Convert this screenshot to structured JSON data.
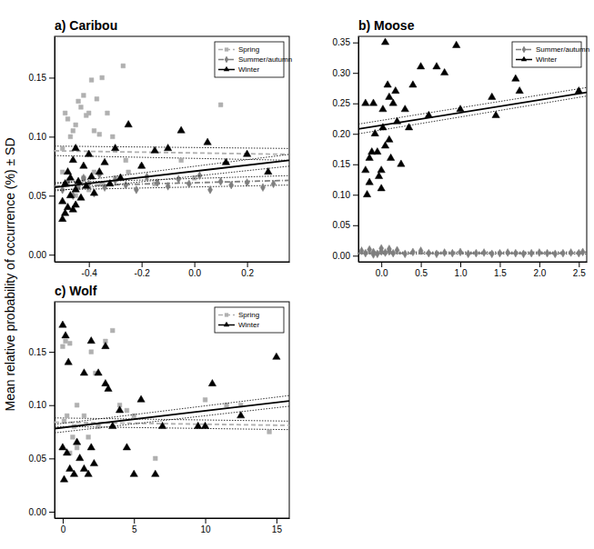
{
  "ylabel": "Mean relative probability of occurrence (%) ± SD",
  "chart_data": [
    {
      "type": "scatter",
      "title": "a) Caribou",
      "legend": "top-right",
      "xlim": [
        -0.53,
        0.36
      ],
      "xticks": [
        -0.4,
        -0.2,
        {
          "value": 0,
          "label": "0.0"
        },
        0.2
      ],
      "ylim": [
        -0.006,
        0.185
      ],
      "yticks": [
        {
          "value": 0,
          "label": "0.00"
        },
        {
          "value": 0.05,
          "label": "0.05"
        },
        {
          "value": 0.1,
          "label": "0.10"
        },
        {
          "value": 0.15,
          "label": "0.15"
        }
      ],
      "series": [
        {
          "name": "Spring",
          "color": "#b0b0b0",
          "marker": "square",
          "line_style": "dashed",
          "x": [
            -0.5,
            -0.49,
            -0.48,
            -0.47,
            -0.46,
            -0.45,
            -0.44,
            -0.43,
            -0.42,
            -0.41,
            -0.4,
            -0.39,
            -0.38,
            -0.37,
            -0.36,
            -0.35,
            -0.33,
            -0.31,
            -0.27,
            -0.26,
            -0.5,
            -0.48,
            -0.45,
            -0.42,
            -0.4,
            -0.38,
            -0.35,
            -0.3,
            -0.25,
            -0.2,
            -0.15,
            0.1,
            -0.05,
            0
          ],
          "values": [
            0.09,
            0.12,
            0.115,
            0.1,
            0.105,
            0.11,
            0.13,
            0.125,
            0.135,
            0.118,
            0.12,
            0.148,
            0.105,
            0.132,
            0.102,
            0.15,
            0.12,
            0.1,
            0.16,
            0.08,
            0.07,
            0.06,
            0.05,
            0.065,
            0.055,
            0.07,
            0.06,
            0.065,
            0.07,
            0.075,
            0.06,
            0.127,
            0.08,
            0.065
          ],
          "fit": {
            "x": [
              -0.53,
              0.36
            ],
            "values": [
              0.088,
              0.085
            ],
            "lower": [
              0.084,
              0.08
            ],
            "upper": [
              0.092,
              0.09
            ]
          }
        },
        {
          "name": "Summer/autumn",
          "color": "#7f7f7f",
          "marker": "diamond",
          "line_style": "dashdot",
          "x": [
            -0.5,
            -0.48,
            -0.46,
            -0.44,
            -0.42,
            -0.4,
            -0.38,
            -0.36,
            -0.34,
            -0.3,
            -0.26,
            -0.22,
            -0.18,
            -0.14,
            -0.1,
            -0.06,
            -0.02,
            0.02,
            0.06,
            0.1,
            0.14,
            0.2,
            0.26,
            0.3
          ],
          "values": [
            0.055,
            0.062,
            0.05,
            0.058,
            0.065,
            0.06,
            0.052,
            0.068,
            0.057,
            0.063,
            0.059,
            0.055,
            0.066,
            0.061,
            0.058,
            0.064,
            0.06,
            0.067,
            0.055,
            0.062,
            0.059,
            0.061,
            0.057,
            0.06
          ],
          "fit": {
            "x": [
              -0.53,
              0.36
            ],
            "values": [
              0.058,
              0.063
            ],
            "lower": [
              0.055,
              0.059
            ],
            "upper": [
              0.061,
              0.067
            ]
          }
        },
        {
          "name": "Winter",
          "color": "#000000",
          "marker": "triangle",
          "line_style": "solid",
          "x": [
            -0.5,
            -0.5,
            -0.49,
            -0.49,
            -0.48,
            -0.48,
            -0.47,
            -0.47,
            -0.46,
            -0.46,
            -0.45,
            -0.45,
            -0.44,
            -0.43,
            -0.42,
            -0.41,
            -0.4,
            -0.39,
            -0.38,
            -0.36,
            -0.34,
            -0.32,
            -0.3,
            -0.28,
            -0.25,
            -0.2,
            -0.15,
            -0.1,
            -0.05,
            0.05,
            0.12,
            0.2,
            0.28,
            -0.45
          ],
          "values": [
            0.03,
            0.045,
            0.035,
            0.06,
            0.04,
            0.07,
            0.05,
            0.065,
            0.038,
            0.08,
            0.055,
            0.09,
            0.062,
            0.048,
            0.075,
            0.058,
            0.085,
            0.066,
            0.052,
            0.07,
            0.078,
            0.06,
            0.09,
            0.065,
            0.11,
            0.075,
            0.088,
            0.09,
            0.105,
            0.095,
            0.078,
            0.085,
            0.07,
            0.042
          ],
          "fit": {
            "x": [
              -0.53,
              0.36
            ],
            "values": [
              0.057,
              0.08
            ],
            "lower": [
              0.054,
              0.075
            ],
            "upper": [
              0.06,
              0.085
            ]
          }
        }
      ]
    },
    {
      "type": "scatter",
      "title": "b) Moose",
      "legend": "top-right",
      "xlim": [
        -0.29,
        2.6
      ],
      "xticks": [
        {
          "value": 0,
          "label": "0.0"
        },
        0.5,
        {
          "value": 1,
          "label": "1.0"
        },
        1.5,
        {
          "value": 2,
          "label": "2.0"
        },
        2.5
      ],
      "ylim": [
        -0.01,
        0.36
      ],
      "yticks": [
        {
          "value": 0,
          "label": "0.00"
        },
        {
          "value": 0.05,
          "label": "0.05"
        },
        {
          "value": 0.1,
          "label": "0.10"
        },
        {
          "value": 0.15,
          "label": "0.15"
        },
        {
          "value": 0.2,
          "label": "0.20"
        },
        {
          "value": 0.25,
          "label": "0.25"
        },
        {
          "value": 0.3,
          "label": "0.30"
        },
        {
          "value": 0.35,
          "label": "0.35"
        }
      ],
      "series": [
        {
          "name": "Summer/autumn",
          "color": "#7f7f7f",
          "marker": "diamond",
          "line_style": "dashdot",
          "x": [
            -0.25,
            -0.2,
            -0.15,
            -0.1,
            -0.05,
            0,
            0.05,
            0.1,
            0.15,
            0.2,
            0.3,
            0.4,
            0.5,
            0.6,
            0.7,
            0.8,
            0.9,
            1,
            1.1,
            1.2,
            1.3,
            1.4,
            1.5,
            1.6,
            1.7,
            1.8,
            1.9,
            2,
            2.1,
            2.2,
            2.3,
            2.4,
            2.5,
            2.55,
            -0.1,
            0,
            0.1
          ],
          "values": [
            0.008,
            0.004,
            0.01,
            0.006,
            0.003,
            0.012,
            0.005,
            0.007,
            0.004,
            0.009,
            0.003,
            0.006,
            0.008,
            0.004,
            0.003,
            0.005,
            0.004,
            0.006,
            0.003,
            0.004,
            0.005,
            0.003,
            0.004,
            0.005,
            0.004,
            0.003,
            0.004,
            0.005,
            0.004,
            0.003,
            0.004,
            0.005,
            0.004,
            0.006,
            0.002,
            0.007,
            0.011
          ],
          "fit": {
            "x": [
              -0.29,
              2.6
            ],
            "values": [
              0.004,
              0.004
            ],
            "lower": [
              0.003,
              0.003
            ],
            "upper": [
              0.006,
              0.006
            ]
          }
        },
        {
          "name": "Winter",
          "color": "#000000",
          "marker": "triangle",
          "line_style": "solid",
          "x": [
            -0.2,
            -0.2,
            -0.18,
            -0.15,
            -0.12,
            -0.1,
            -0.08,
            -0.05,
            -0.03,
            0,
            0.02,
            0.05,
            0.08,
            0.1,
            0.12,
            0.15,
            0.18,
            0.2,
            0.05,
            0.3,
            0.35,
            0.4,
            0.5,
            0.6,
            0.7,
            0.8,
            0.95,
            1,
            1.4,
            1.45,
            1.7,
            1.75,
            2.5,
            0,
            0.1,
            -0.15,
            0.02,
            0.25
          ],
          "values": [
            0.14,
            0.25,
            0.1,
            0.12,
            0.17,
            0.25,
            0.2,
            0.17,
            0.13,
            0.11,
            0.21,
            0.18,
            0.28,
            0.26,
            0.16,
            0.25,
            0.27,
            0.22,
            0.35,
            0.24,
            0.21,
            0.28,
            0.31,
            0.23,
            0.31,
            0.3,
            0.345,
            0.24,
            0.26,
            0.23,
            0.29,
            0.27,
            0.27,
            0.14,
            0.19,
            0.16,
            0.24,
            0.15
          ],
          "fit": {
            "x": [
              -0.29,
              2.6
            ],
            "values": [
              0.208,
              0.268
            ],
            "lower": [
              0.2,
              0.262
            ],
            "upper": [
              0.216,
              0.276
            ]
          }
        }
      ]
    },
    {
      "type": "scatter",
      "title": "c) Wolf",
      "legend": "top-right",
      "xlim": [
        -0.57,
        15.9
      ],
      "xticks": [
        0,
        5,
        10,
        15
      ],
      "ylim": [
        -0.006,
        0.197
      ],
      "yticks": [
        {
          "value": 0,
          "label": "0.00"
        },
        {
          "value": 0.05,
          "label": "0.05"
        },
        {
          "value": 0.1,
          "label": "0.10"
        },
        {
          "value": 0.15,
          "label": "0.15"
        }
      ],
      "series": [
        {
          "name": "Spring",
          "color": "#b0b0b0",
          "marker": "square",
          "line_style": "dashed",
          "x": [
            0,
            0.2,
            0.5,
            1,
            0.3,
            0.8,
            1.5,
            2,
            3,
            3.5,
            4,
            4.5,
            2.5,
            1,
            0.5,
            1.8,
            6.5,
            10,
            11.5,
            12.5,
            14.5,
            5,
            2.3,
            0.1,
            0.7
          ],
          "values": [
            0.155,
            0.16,
            0.158,
            0.1,
            0.09,
            0.08,
            0.09,
            0.15,
            0.16,
            0.17,
            0.1,
            0.095,
            0.08,
            0.06,
            0.055,
            0.07,
            0.05,
            0.105,
            0.1,
            0.1,
            0.075,
            0.09,
            0.13,
            0.085,
            0.07
          ],
          "fit": {
            "x": [
              -0.57,
              15.9
            ],
            "values": [
              0.084,
              0.081
            ],
            "lower": [
              0.08,
              0.077
            ],
            "upper": [
              0.088,
              0.085
            ]
          }
        },
        {
          "name": "Winter",
          "color": "#000000",
          "marker": "triangle",
          "line_style": "solid",
          "x": [
            0,
            0.2,
            0.4,
            0,
            0.3,
            0.5,
            0.1,
            0.8,
            1,
            1.2,
            1.5,
            1.8,
            2,
            2.2,
            2.5,
            3,
            3.2,
            3.5,
            4,
            4.5,
            5,
            5.5,
            6.5,
            7,
            9.5,
            10,
            10.5,
            12.5,
            15,
            2,
            3,
            1.5
          ],
          "values": [
            0.175,
            0.165,
            0.14,
            0.06,
            0.055,
            0.04,
            0.03,
            0.035,
            0.065,
            0.05,
            0.04,
            0.035,
            0.06,
            0.045,
            0.13,
            0.12,
            0.115,
            0.08,
            0.095,
            0.06,
            0.035,
            0.105,
            0.035,
            0.08,
            0.08,
            0.08,
            0.12,
            0.09,
            0.145,
            0.16,
            0.155,
            0.13
          ],
          "fit": {
            "x": [
              -0.57,
              15.9
            ],
            "values": [
              0.078,
              0.104
            ],
            "lower": [
              0.074,
              0.099
            ],
            "upper": [
              0.082,
              0.109
            ]
          }
        }
      ]
    }
  ]
}
